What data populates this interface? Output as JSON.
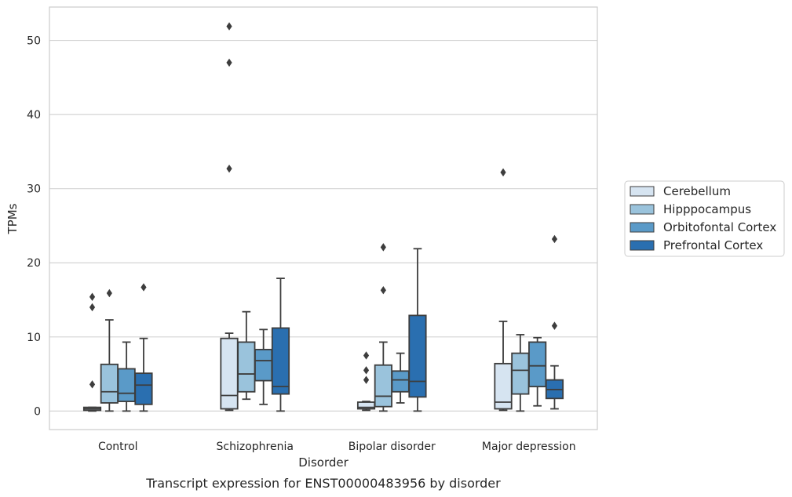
{
  "caption": "Transcript expression for ENST00000483956 by disorder",
  "chart_data": {
    "type": "boxplot",
    "xlabel": "Disorder",
    "ylabel": "TPMs",
    "ylim": [
      -2.5,
      54.5
    ],
    "yticks": [
      0,
      10,
      20,
      30,
      40,
      50
    ],
    "grid": "horizontal",
    "legend_position": "right",
    "categories": [
      "Control",
      "Schizophrenia",
      "Bipolar disorder",
      "Major depression"
    ],
    "series": [
      {
        "name": "Cerebellum",
        "color": "#d6e4f1",
        "boxes": [
          {
            "whisker_low": 0.0,
            "q1": 0.1,
            "median": 0.3,
            "q3": 0.5,
            "whisker_high": 0.5,
            "outliers": [
              3.6,
              14.0,
              15.4
            ]
          },
          {
            "whisker_low": 0.1,
            "q1": 0.3,
            "median": 2.1,
            "q3": 9.8,
            "whisker_high": 10.5,
            "outliers": [
              32.7,
              47.0,
              51.9
            ]
          },
          {
            "whisker_low": 0.1,
            "q1": 0.3,
            "median": 0.5,
            "q3": 1.2,
            "whisker_high": 1.3,
            "outliers": [
              4.2,
              5.5,
              7.5
            ]
          },
          {
            "whisker_low": 0.1,
            "q1": 0.3,
            "median": 1.2,
            "q3": 6.4,
            "whisker_high": 12.1,
            "outliers": [
              32.2
            ]
          }
        ]
      },
      {
        "name": "Hipppocampus",
        "color": "#9ac3dc",
        "boxes": [
          {
            "whisker_low": 0.0,
            "q1": 1.1,
            "median": 2.6,
            "q3": 6.3,
            "whisker_high": 12.3,
            "outliers": [
              15.9
            ]
          },
          {
            "whisker_low": 1.6,
            "q1": 2.6,
            "median": 5.0,
            "q3": 9.3,
            "whisker_high": 13.4,
            "outliers": []
          },
          {
            "whisker_low": 0.0,
            "q1": 0.6,
            "median": 2.0,
            "q3": 6.2,
            "whisker_high": 9.3,
            "outliers": [
              16.3,
              22.1
            ]
          },
          {
            "whisker_low": 0.0,
            "q1": 2.3,
            "median": 5.5,
            "q3": 7.8,
            "whisker_high": 10.3,
            "outliers": []
          }
        ]
      },
      {
        "name": "Orbitofontal Cortex",
        "color": "#5a9ac8",
        "boxes": [
          {
            "whisker_low": 0.0,
            "q1": 1.3,
            "median": 2.4,
            "q3": 5.7,
            "whisker_high": 9.3,
            "outliers": []
          },
          {
            "whisker_low": 0.9,
            "q1": 4.1,
            "median": 6.8,
            "q3": 8.3,
            "whisker_high": 11.0,
            "outliers": []
          },
          {
            "whisker_low": 1.1,
            "q1": 2.6,
            "median": 4.2,
            "q3": 5.4,
            "whisker_high": 7.8,
            "outliers": []
          },
          {
            "whisker_low": 0.7,
            "q1": 3.3,
            "median": 6.1,
            "q3": 9.3,
            "whisker_high": 9.9,
            "outliers": []
          }
        ]
      },
      {
        "name": "Prefrontal Cortex",
        "color": "#2a6fb0",
        "boxes": [
          {
            "whisker_low": 0.0,
            "q1": 0.9,
            "median": 3.5,
            "q3": 5.1,
            "whisker_high": 9.8,
            "outliers": [
              16.7
            ]
          },
          {
            "whisker_low": 0.0,
            "q1": 2.3,
            "median": 3.3,
            "q3": 11.2,
            "whisker_high": 17.9,
            "outliers": []
          },
          {
            "whisker_low": 0.0,
            "q1": 1.9,
            "median": 4.0,
            "q3": 12.9,
            "whisker_high": 21.9,
            "outliers": []
          },
          {
            "whisker_low": 0.3,
            "q1": 1.7,
            "median": 2.9,
            "q3": 4.2,
            "whisker_high": 6.1,
            "outliers": [
              11.5,
              23.2
            ]
          }
        ]
      }
    ]
  }
}
